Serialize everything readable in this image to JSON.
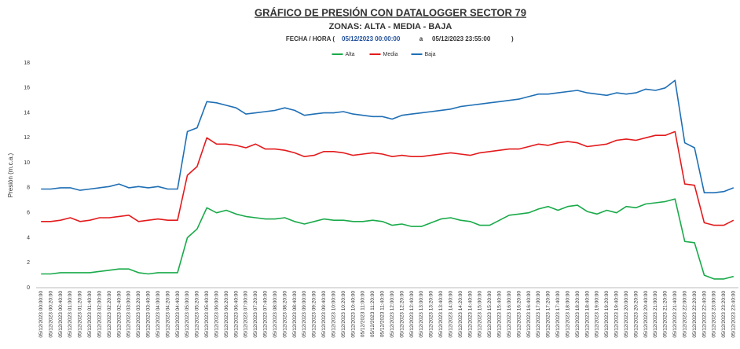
{
  "chart_data": {
    "type": "line",
    "title": "GRÁFICO DE PRESIÓN CON DATALOGGER SECTOR 79",
    "subtitle": "ZONAS: ALTA - MEDIA - BAJA",
    "date_range": {
      "prefix": "FECHA / HORA (",
      "start": "05/12/2023 00:00:00",
      "separator": "a",
      "end": "05/12/2023 23:55:00",
      "suffix": ")"
    },
    "y_label": "Presión (m.c.a.)",
    "ylim": [
      0,
      18
    ],
    "yticks": [
      0,
      2,
      4,
      6,
      8,
      10,
      12,
      14,
      16,
      18
    ],
    "grid": false,
    "legend": "top",
    "categories": [
      "05/12/2023 00:00:00",
      "05/12/2023 00:20:00",
      "05/12/2023 00:40:00",
      "05/12/2023 01:00:00",
      "05/12/2023 01:20:00",
      "05/12/2023 01:40:00",
      "05/12/2023 02:00:00",
      "05/12/2023 02:20:00",
      "05/12/2023 02:40:00",
      "05/12/2023 03:00:00",
      "05/12/2023 03:20:00",
      "05/12/2023 03:40:00",
      "05/12/2023 04:00:00",
      "05/12/2023 04:20:00",
      "05/12/2023 04:40:00",
      "05/12/2023 05:00:00",
      "05/12/2023 05:20:00",
      "05/12/2023 05:40:00",
      "05/12/2023 06:00:00",
      "05/12/2023 06:20:00",
      "05/12/2023 06:40:00",
      "05/12/2023 07:00:00",
      "05/12/2023 07:20:00",
      "05/12/2023 07:40:00",
      "05/12/2023 08:00:00",
      "05/12/2023 08:20:00",
      "05/12/2023 08:40:00",
      "05/12/2023 09:00:00",
      "05/12/2023 09:20:00",
      "05/12/2023 09:40:00",
      "05/12/2023 10:00:00",
      "05/12/2023 10:20:00",
      "05/12/2023 10:40:00",
      "05/12/2023 11:00:00",
      "05/12/2023 11:20:00",
      "05/12/2023 11:40:00",
      "05/12/2023 12:00:00",
      "05/12/2023 12:20:00",
      "05/12/2023 12:40:00",
      "05/12/2023 13:00:00",
      "05/12/2023 13:20:00",
      "05/12/2023 13:40:00",
      "05/12/2023 14:00:00",
      "05/12/2023 14:20:00",
      "05/12/2023 14:40:00",
      "05/12/2023 15:00:00",
      "05/12/2023 15:20:00",
      "05/12/2023 15:40:00",
      "05/12/2023 16:00:00",
      "05/12/2023 16:20:00",
      "05/12/2023 16:40:00",
      "05/12/2023 17:00:00",
      "05/12/2023 17:20:00",
      "05/12/2023 17:40:00",
      "05/12/2023 18:00:00",
      "05/12/2023 18:20:00",
      "05/12/2023 18:40:00",
      "05/12/2023 19:00:00",
      "05/12/2023 19:20:00",
      "05/12/2023 19:40:00",
      "05/12/2023 20:00:00",
      "05/12/2023 20:20:00",
      "05/12/2023 20:40:00",
      "05/12/2023 21:00:00",
      "05/12/2023 21:20:00",
      "05/12/2023 21:40:00",
      "05/12/2023 22:00:00",
      "05/12/2023 22:20:00",
      "05/12/2023 22:40:00",
      "05/12/2023 23:00:00",
      "05/12/2023 23:20:00",
      "05/12/2023 23:40:00"
    ],
    "series": [
      {
        "name": "Alta",
        "color": "#1aaa4a",
        "values": [
          1.1,
          1.1,
          1.2,
          1.2,
          1.2,
          1.2,
          1.3,
          1.4,
          1.5,
          1.5,
          1.2,
          1.1,
          1.2,
          1.2,
          1.2,
          4.0,
          4.7,
          6.4,
          6.0,
          6.2,
          5.9,
          5.7,
          5.6,
          5.5,
          5.5,
          5.6,
          5.3,
          5.1,
          5.3,
          5.5,
          5.4,
          5.4,
          5.3,
          5.3,
          5.4,
          5.3,
          5.0,
          5.1,
          4.9,
          4.9,
          5.2,
          5.5,
          5.6,
          5.4,
          5.3,
          5.0,
          5.0,
          5.4,
          5.8,
          5.9,
          6.0,
          6.3,
          6.5,
          6.2,
          6.5,
          6.6,
          6.1,
          5.9,
          6.2,
          6.0,
          6.5,
          6.4,
          6.7,
          6.8,
          6.9,
          7.1,
          3.7,
          3.6,
          1.0,
          0.7,
          0.7,
          0.9
        ]
      },
      {
        "name": "Media",
        "color": "#e31a1c",
        "values": [
          5.3,
          5.3,
          5.4,
          5.6,
          5.3,
          5.4,
          5.6,
          5.6,
          5.7,
          5.8,
          5.3,
          5.4,
          5.5,
          5.4,
          5.4,
          9.0,
          9.7,
          12.0,
          11.5,
          11.5,
          11.4,
          11.2,
          11.5,
          11.1,
          11.1,
          11.0,
          10.8,
          10.5,
          10.6,
          10.9,
          10.9,
          10.8,
          10.6,
          10.7,
          10.8,
          10.7,
          10.5,
          10.6,
          10.5,
          10.5,
          10.6,
          10.7,
          10.8,
          10.7,
          10.6,
          10.8,
          10.9,
          11.0,
          11.1,
          11.1,
          11.3,
          11.5,
          11.4,
          11.6,
          11.7,
          11.6,
          11.3,
          11.4,
          11.5,
          11.8,
          11.9,
          11.8,
          12.0,
          12.2,
          12.2,
          12.5,
          8.3,
          8.2,
          5.2,
          5.0,
          5.0,
          5.4
        ]
      },
      {
        "name": "Baja",
        "color": "#1f6fb5",
        "values": [
          7.9,
          7.9,
          8.0,
          8.0,
          7.8,
          7.9,
          8.0,
          8.1,
          8.3,
          8.0,
          8.1,
          8.0,
          8.1,
          7.9,
          7.9,
          12.5,
          12.8,
          14.9,
          14.8,
          14.6,
          14.4,
          13.9,
          14.0,
          14.1,
          14.2,
          14.4,
          14.2,
          13.8,
          13.9,
          14.0,
          14.0,
          14.1,
          13.9,
          13.8,
          13.7,
          13.7,
          13.5,
          13.8,
          13.9,
          14.0,
          14.1,
          14.2,
          14.3,
          14.5,
          14.6,
          14.7,
          14.8,
          14.9,
          15.0,
          15.1,
          15.3,
          15.5,
          15.5,
          15.6,
          15.7,
          15.8,
          15.6,
          15.5,
          15.4,
          15.6,
          15.5,
          15.6,
          15.9,
          15.8,
          16.0,
          16.6,
          11.6,
          11.2,
          7.6,
          7.6,
          7.7,
          8.0
        ]
      }
    ]
  }
}
